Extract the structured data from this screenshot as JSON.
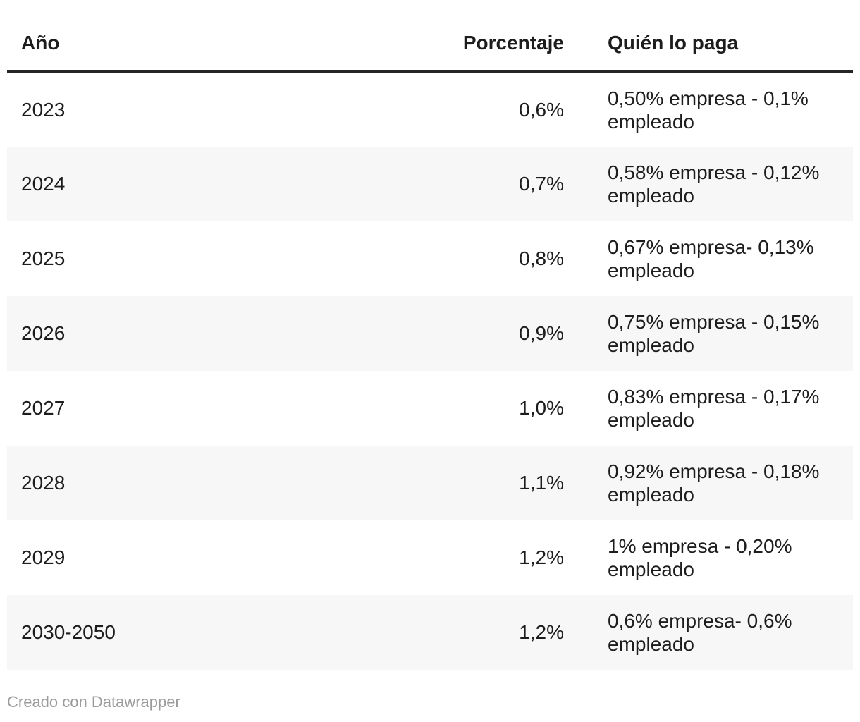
{
  "table": {
    "columns": [
      {
        "label": "Año",
        "align": "left"
      },
      {
        "label": "Porcentaje",
        "align": "right"
      },
      {
        "label": "Quién lo paga",
        "align": "left"
      }
    ],
    "rows": [
      {
        "year": "2023",
        "percentage": "0,6%",
        "who": "0,50% empresa - 0,1% empleado"
      },
      {
        "year": "2024",
        "percentage": "0,7%",
        "who": "0,58% empresa - 0,12% empleado"
      },
      {
        "year": "2025",
        "percentage": "0,8%",
        "who": "0,67% empresa- 0,13% empleado"
      },
      {
        "year": "2026",
        "percentage": "0,9%",
        "who": "0,75% empresa - 0,15% empleado"
      },
      {
        "year": "2027",
        "percentage": "1,0%",
        "who": "0,83% empresa - 0,17% empleado"
      },
      {
        "year": "2028",
        "percentage": "1,1%",
        "who": "0,92% empresa - 0,18% empleado"
      },
      {
        "year": "2029",
        "percentage": "1,2%",
        "who": "1% empresa - 0,20% empleado"
      },
      {
        "year": "2030-2050",
        "percentage": "1,2%",
        "who": "0,6% empresa- 0,6% empleado"
      }
    ]
  },
  "footer": {
    "credit": "Creado con Datawrapper"
  },
  "colors": {
    "background": "#ffffff",
    "text": "#1d1d1d",
    "header_rule": "#262626",
    "row_stripe": "#f7f7f7",
    "credit_text": "#9b9b9b"
  },
  "chart_data": {
    "type": "table",
    "columns": [
      "Año",
      "Porcentaje",
      "Quién lo paga"
    ],
    "rows": [
      [
        "2023",
        "0,6%",
        "0,50% empresa - 0,1% empleado"
      ],
      [
        "2024",
        "0,7%",
        "0,58% empresa - 0,12% empleado"
      ],
      [
        "2025",
        "0,8%",
        "0,67% empresa- 0,13% empleado"
      ],
      [
        "2026",
        "0,9%",
        "0,75% empresa - 0,15% empleado"
      ],
      [
        "2027",
        "1,0%",
        "0,83% empresa - 0,17% empleado"
      ],
      [
        "2028",
        "1,1%",
        "0,92% empresa - 0,18% empleado"
      ],
      [
        "2029",
        "1,2%",
        "1% empresa - 0,20% empleado"
      ],
      [
        "2030-2050",
        "1,2%",
        "0,6% empresa- 0,6% empleado"
      ]
    ],
    "title": "",
    "layout_hints": {
      "striped_rows": "even rows shaded",
      "header_rule": "thick dark bottom border",
      "porcentaje_column_align": "right"
    }
  }
}
